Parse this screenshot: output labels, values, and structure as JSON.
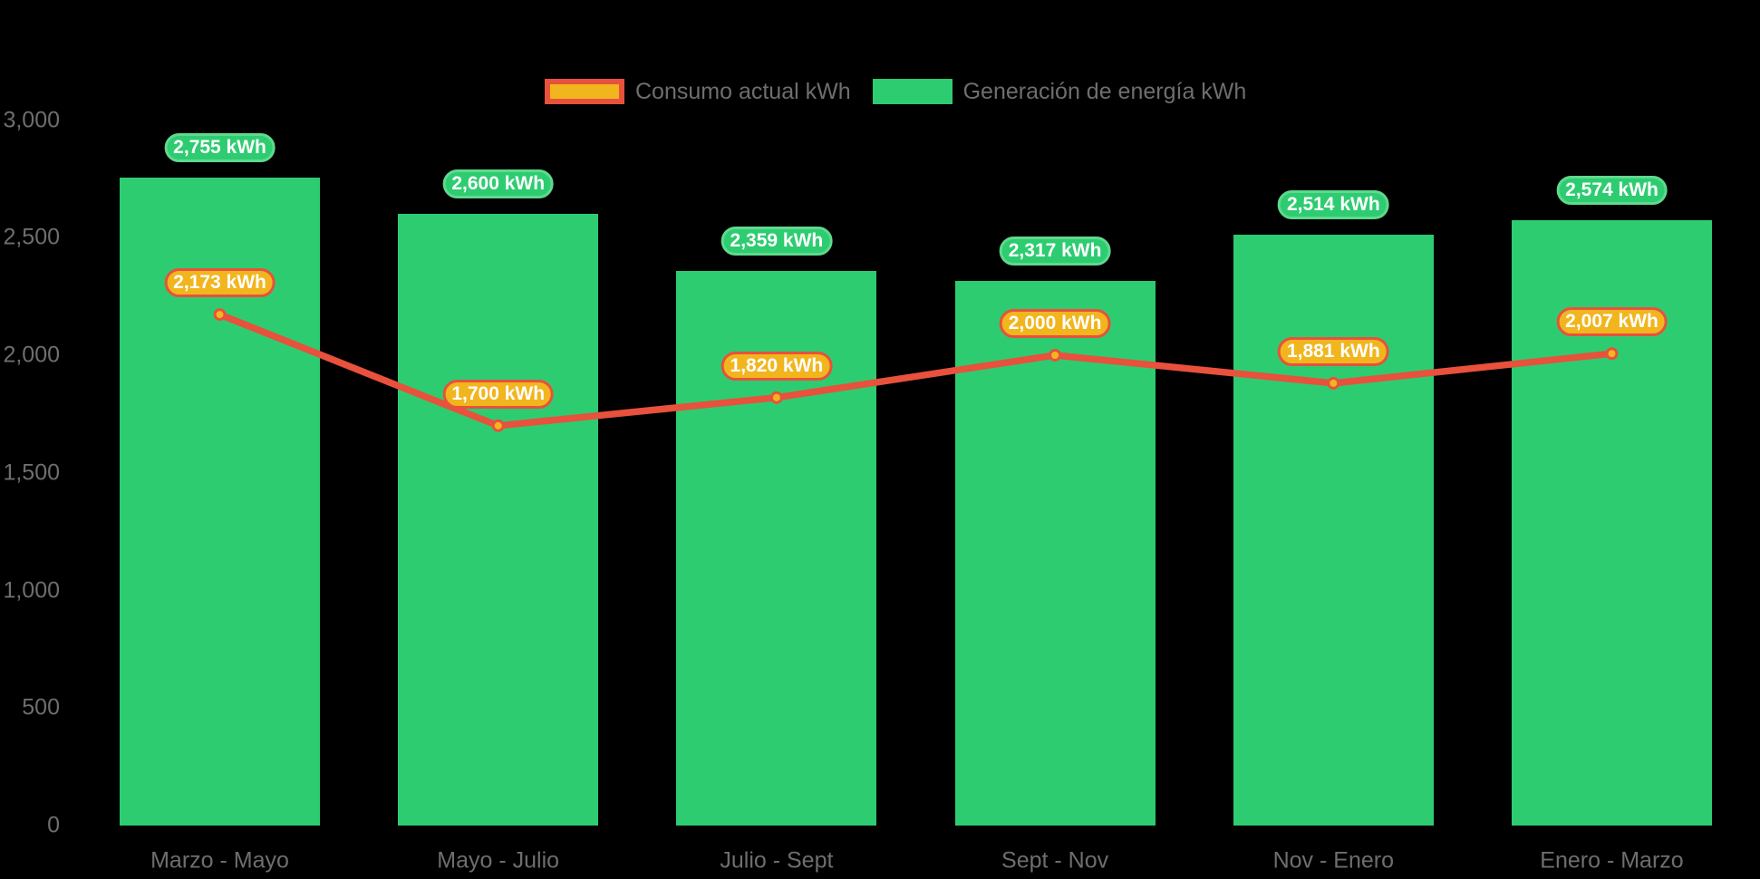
{
  "chart_data": {
    "type": "combo-bar-line",
    "title": "",
    "categories": [
      "Marzo - Mayo",
      "Mayo - Julio",
      "Julio - Sept",
      "Sept - Nov",
      "Nov - Enero",
      "Enero - Marzo"
    ],
    "series": [
      {
        "name": "Consumo actual kWh",
        "type": "line",
        "values": [
          2173,
          1700,
          1820,
          2000,
          1881,
          2007
        ],
        "point_labels": [
          "2,173 kWh",
          "1,700 kWh",
          "1,820 kWh",
          "2,000 kWh",
          "1,881 kWh",
          "2,007 kWh"
        ],
        "line_color": "#E8513C",
        "point_fill": "#F1B51E",
        "point_border": "#E8513C"
      },
      {
        "name": "Generación de energía kWh",
        "type": "bar",
        "values": [
          2755,
          2600,
          2359,
          2317,
          2514,
          2574
        ],
        "bar_labels": [
          "2,755 kWh",
          "2,600 kWh",
          "2,359 kWh",
          "2,317 kWh",
          "2,514 kWh",
          "2,574 kWh"
        ],
        "bar_color": "#2ECC71",
        "label_border": "#5FD98E"
      }
    ],
    "xlabel": "",
    "ylabel": "",
    "y_ticks": [
      0,
      500,
      1000,
      1500,
      2000,
      2500,
      3000
    ],
    "y_tick_labels": [
      "0",
      "500",
      "1,000",
      "1,500",
      "2,000",
      "2,500",
      "3,000"
    ],
    "ylim": [
      0,
      3000
    ],
    "grid": false,
    "legend_position": "top",
    "background_color": "#000000",
    "axis_text_color": "#6E6E6E",
    "value_label_text_color": "#FFFFFF"
  },
  "legend": {
    "items": [
      {
        "label": "Consumo actual kWh",
        "swatch_fill": "#F1B51E",
        "swatch_border": "#E8513C"
      },
      {
        "label": "Generación de energía kWh",
        "swatch_fill": "#2ECC71",
        "swatch_border": "#2ECC71"
      }
    ]
  }
}
